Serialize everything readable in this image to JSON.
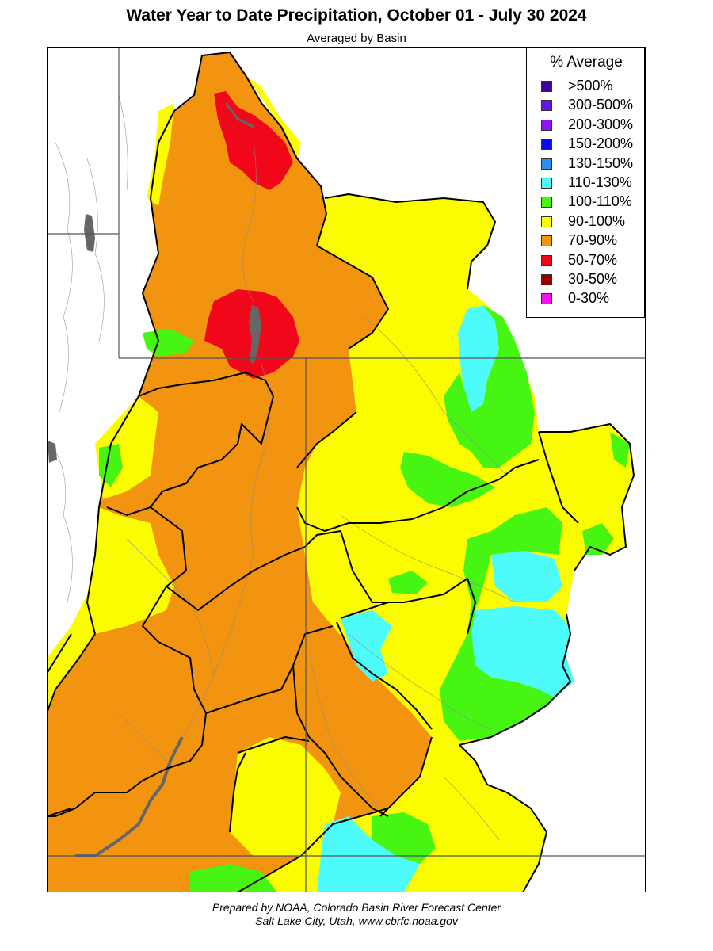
{
  "title": "Water Year to Date Precipitation, October 01  - July 30 2024",
  "subtitle": "Averaged by Basin",
  "legend": {
    "title": "% Average",
    "items": [
      {
        "label": ">500%",
        "color": "#3f0099"
      },
      {
        "label": "300-500%",
        "color": "#6a13e8"
      },
      {
        "label": "200-300%",
        "color": "#8c14f5"
      },
      {
        "label": "150-200%",
        "color": "#0a0af5"
      },
      {
        "label": "130-150%",
        "color": "#2f8cf5"
      },
      {
        "label": "110-130%",
        "color": "#4dfcfa"
      },
      {
        "label": "100-110%",
        "color": "#46f512"
      },
      {
        "label": "90-100%",
        "color": "#fcfc00"
      },
      {
        "label": "70-90%",
        "color": "#f29410"
      },
      {
        "label": "50-70%",
        "color": "#f0081a"
      },
      {
        "label": "30-50%",
        "color": "#990000"
      },
      {
        "label": "0-30%",
        "color": "#f50ff2"
      }
    ]
  },
  "credits": {
    "line1": "Prepared by NOAA, Colorado Basin River Forecast Center",
    "line2": "Salt Lake City, Utah, www.cbrfc.noaa.gov"
  },
  "map_colors": {
    "background": "#ffffff",
    "lake": "#666666",
    "boundary": "#000000",
    "state_line": "#555555",
    "river": "#888888"
  }
}
